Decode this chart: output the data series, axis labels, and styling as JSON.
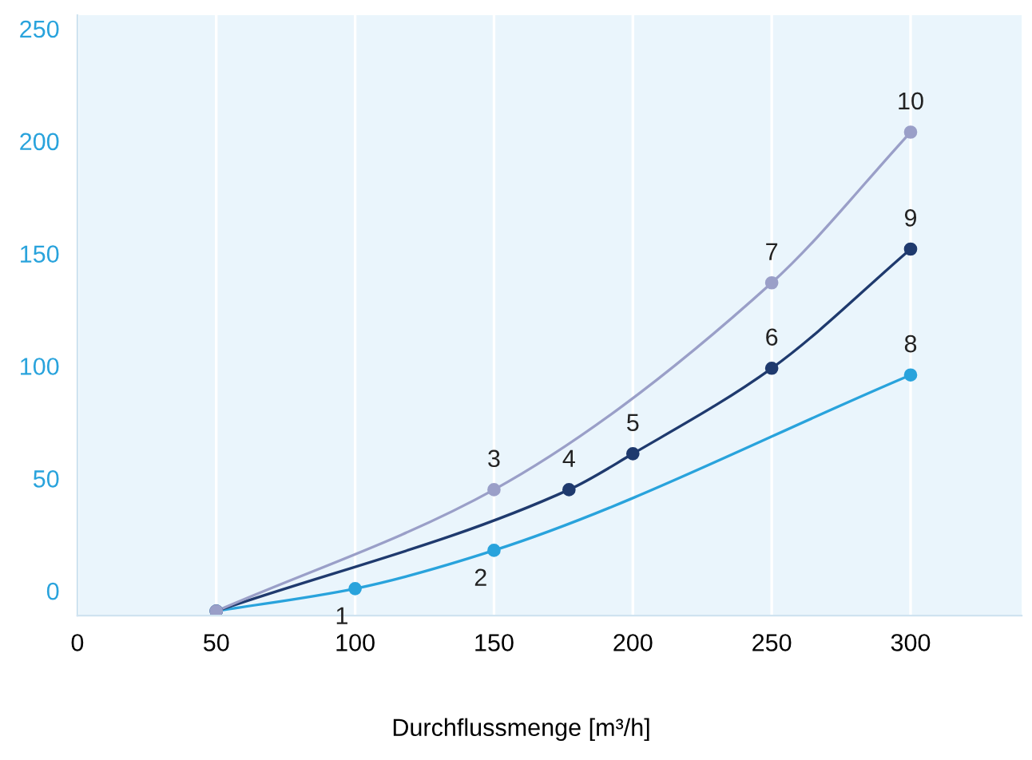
{
  "chart_data": {
    "type": "line",
    "xlabel": "Durchflussmenge [m³/h]",
    "xlim": [
      0,
      340
    ],
    "ylim": [
      -11,
      256
    ],
    "xticks": [
      0,
      50,
      100,
      150,
      200,
      250,
      300
    ],
    "yticks": [
      0,
      50,
      100,
      150,
      200,
      250
    ],
    "grid": "x",
    "marker": "circle",
    "line_style": "solid",
    "series": [
      {
        "color": "#29a3dc",
        "x": [
          50,
          100,
          150,
          300
        ],
        "values": [
          -9,
          1,
          18,
          96
        ]
      },
      {
        "color": "#1f3a6e",
        "x": [
          50,
          177,
          200,
          250,
          300
        ],
        "values": [
          -9,
          45,
          61,
          99,
          152
        ]
      },
      {
        "color": "#9a9fc8",
        "x": [
          50,
          150,
          250,
          300
        ],
        "values": [
          -9,
          45,
          137,
          204
        ]
      }
    ],
    "annotations": [
      {
        "text": "1",
        "x": 100,
        "y": 1
      },
      {
        "text": "2",
        "x": 150,
        "y": 18
      },
      {
        "text": "3",
        "x": 150,
        "y": 45
      },
      {
        "text": "4",
        "x": 177,
        "y": 45
      },
      {
        "text": "5",
        "x": 200,
        "y": 61
      },
      {
        "text": "6",
        "x": 250,
        "y": 99
      },
      {
        "text": "7",
        "x": 250,
        "y": 137
      },
      {
        "text": "8",
        "x": 300,
        "y": 96
      },
      {
        "text": "9",
        "x": 300,
        "y": 152
      },
      {
        "text": "10",
        "x": 300,
        "y": 204
      }
    ]
  }
}
